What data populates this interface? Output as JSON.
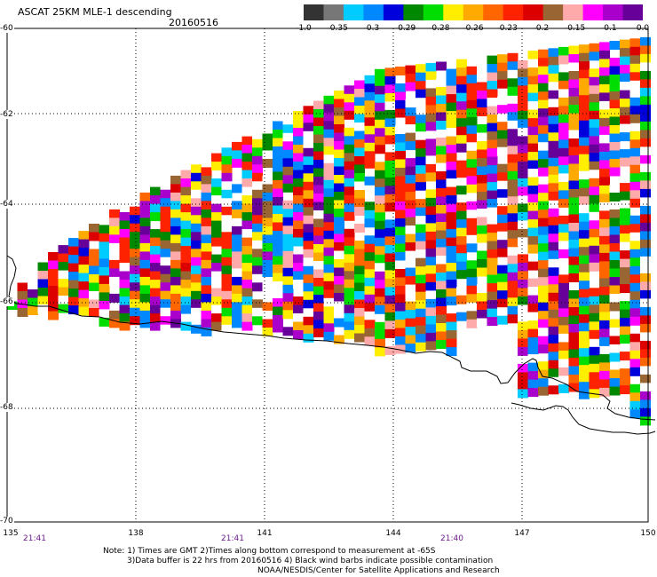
{
  "title": "ASCAT 25KM MLE-1 descending",
  "date": "20160516",
  "colorbar": {
    "labels": [
      "-1.0",
      "-0.35",
      "-0.3",
      "-0.29",
      "-0.28",
      "-0.26",
      "-0.23",
      "-0.2",
      "-0.15",
      "-0.1",
      "0.0"
    ],
    "colors": [
      "#333333",
      "#777777",
      "#00ccff",
      "#0088ff",
      "#0000dd",
      "#008800",
      "#00dd00",
      "#ffee00",
      "#ffaa00",
      "#ff6600",
      "#ff2200",
      "#dd0000",
      "#996633",
      "#ffaaaa",
      "#ff00ff",
      "#aa00cc",
      "#660099"
    ]
  },
  "latitudes": [
    "-60",
    "-62",
    "-64",
    "-66",
    "-68",
    "-70"
  ],
  "longitudes": [
    "135",
    "138",
    "141",
    "144",
    "147",
    "150"
  ],
  "times": [
    "21:41",
    "21:41",
    "21:40"
  ],
  "notes": {
    "line1": "Note: 1) Times are GMT 2)Times along bottom correspond to measurement at -65S",
    "line2": "3)Data buffer is 22 hrs from 20160516 4) Black wind barbs indicate possible contamination",
    "line3": "NOAA/NESDIS/Center for Satellite Applications and Research"
  }
}
